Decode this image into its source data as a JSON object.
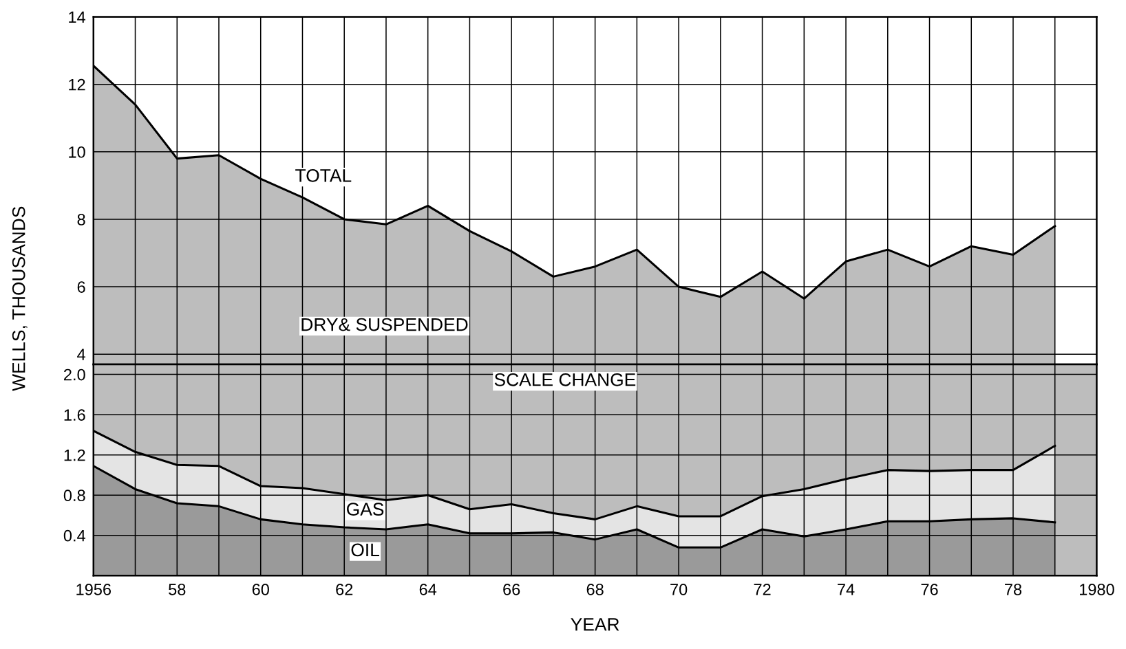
{
  "chart_data": [
    {
      "type": "area",
      "x": [
        1956,
        1957,
        1958,
        1959,
        1960,
        1961,
        1962,
        1963,
        1964,
        1965,
        1966,
        1967,
        1968,
        1969,
        1970,
        1971,
        1972,
        1973,
        1974,
        1975,
        1976,
        1977,
        1978,
        1979
      ],
      "series": [
        {
          "name": "TOTAL",
          "color": "#bdbdbd",
          "values": [
            12.55,
            11.4,
            9.8,
            9.9,
            9.2,
            8.65,
            8.0,
            7.85,
            8.4,
            7.65,
            7.05,
            6.3,
            6.6,
            7.1,
            6.0,
            5.7,
            6.45,
            5.65,
            6.75,
            7.1,
            6.6,
            7.2,
            6.95,
            7.8
          ]
        }
      ],
      "ylim": [
        3.7,
        14
      ],
      "yticks": [
        4,
        6,
        8,
        10,
        12,
        14
      ],
      "xlim": [
        1956,
        1980
      ],
      "xticks": [
        1956,
        {
          "value": 1957,
          "label": null
        },
        1958,
        {
          "value": 1959,
          "label": null
        },
        1960,
        {
          "value": 1961,
          "label": null
        },
        1962,
        {
          "value": 1963,
          "label": null
        },
        1964,
        {
          "value": 1965,
          "label": null
        },
        1966,
        {
          "value": 1967,
          "label": null
        },
        1968,
        {
          "value": 1969,
          "label": null
        },
        1970,
        {
          "value": 1971,
          "label": null
        },
        1972,
        {
          "value": 1973,
          "label": null
        },
        1974,
        {
          "value": 1975,
          "label": null
        },
        1976,
        {
          "value": 1977,
          "label": null
        },
        1978,
        {
          "value": 1979,
          "label": null
        },
        1980
      ],
      "tick_labels": "y",
      "grid": true,
      "annotations": [
        "DRY& SUSPENDED"
      ]
    },
    {
      "type": "area",
      "stacked": true,
      "x": [
        1956,
        1957,
        1958,
        1959,
        1960,
        1961,
        1962,
        1963,
        1964,
        1965,
        1966,
        1967,
        1968,
        1969,
        1970,
        1971,
        1972,
        1973,
        1974,
        1975,
        1976,
        1977,
        1978,
        1979
      ],
      "series": [
        {
          "name": "OIL",
          "color": "#9a9a9a",
          "values": [
            1.09,
            0.86,
            0.72,
            0.69,
            0.56,
            0.51,
            0.48,
            0.46,
            0.51,
            0.42,
            0.42,
            0.43,
            0.36,
            0.46,
            0.28,
            0.28,
            0.46,
            0.39,
            0.46,
            0.54,
            0.54,
            0.56,
            0.57,
            0.53
          ]
        },
        {
          "name": "GAS",
          "color": "#e4e4e4",
          "values": [
            0.35,
            0.37,
            0.38,
            0.4,
            0.33,
            0.36,
            0.33,
            0.29,
            0.29,
            0.24,
            0.29,
            0.19,
            0.2,
            0.23,
            0.31,
            0.31,
            0.33,
            0.47,
            0.5,
            0.51,
            0.5,
            0.49,
            0.48,
            0.76
          ]
        }
      ],
      "ylim": [
        0,
        2.1
      ],
      "yticks": [
        0.4,
        0.8,
        1.2,
        1.6,
        {
          "value": 2,
          "label": "2.0"
        }
      ],
      "xlim": [
        1956,
        1980
      ],
      "xticks": [
        1956,
        {
          "value": 1957,
          "label": null
        },
        {
          "value": 1958,
          "label": "58"
        },
        {
          "value": 1959,
          "label": null
        },
        {
          "value": 1960,
          "label": "60"
        },
        {
          "value": 1961,
          "label": null
        },
        {
          "value": 1962,
          "label": "62"
        },
        {
          "value": 1963,
          "label": null
        },
        {
          "value": 1964,
          "label": "64"
        },
        {
          "value": 1965,
          "label": null
        },
        {
          "value": 1966,
          "label": "66"
        },
        {
          "value": 1967,
          "label": null
        },
        {
          "value": 1968,
          "label": "68"
        },
        {
          "value": 1969,
          "label": null
        },
        {
          "value": 1970,
          "label": "70"
        },
        {
          "value": 1971,
          "label": null
        },
        {
          "value": 1972,
          "label": "72"
        },
        {
          "value": 1973,
          "label": null
        },
        {
          "value": 1974,
          "label": "74"
        },
        {
          "value": 1975,
          "label": null
        },
        {
          "value": 1976,
          "label": "76"
        },
        {
          "value": 1977,
          "label": null
        },
        {
          "value": 1978,
          "label": "78"
        },
        {
          "value": 1979,
          "label": null
        },
        1980
      ],
      "grid": true,
      "xlabel": "YEAR",
      "ylabel": "WELLS, THOUSANDS",
      "annotations": [
        "SCALE CHANGE"
      ]
    }
  ]
}
